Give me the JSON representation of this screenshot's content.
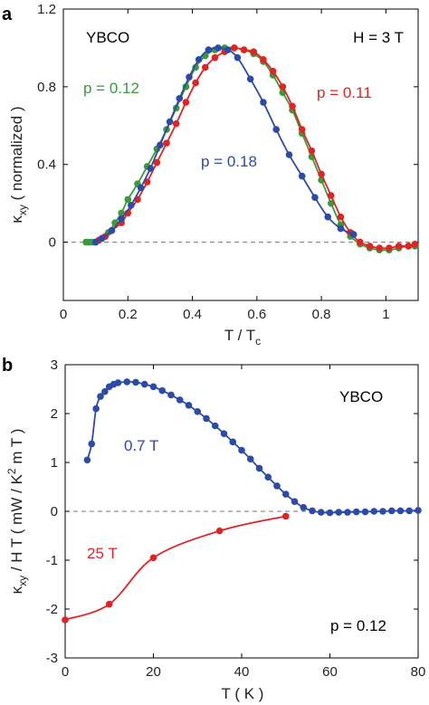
{
  "chart_data": [
    {
      "type": "scatter",
      "panel": "a",
      "xlabel_main": "T / T",
      "xlabel_sub": "c",
      "ylabel_main": "κ",
      "ylabel_sub": "xy",
      "ylabel_rest": " ( normalized )",
      "xlim": [
        0,
        1.1
      ],
      "ylim": [
        -0.3,
        1.2
      ],
      "xticks": [
        0,
        0.2,
        0.4,
        0.6,
        0.8,
        1
      ],
      "xtick_labels": [
        "0",
        "0.2",
        "0.4",
        "0.6",
        "0.8",
        "1"
      ],
      "yticks": [
        0,
        0.4,
        0.8,
        1.2
      ],
      "ytick_labels": [
        "0",
        "0.4",
        "0.8",
        "1.2"
      ],
      "zero_line": true,
      "annotations": {
        "material": "YBCO",
        "field": "H = 3 T"
      },
      "series": [
        {
          "name": "p = 0.12",
          "color": "#3a9a3a",
          "x": [
            0.07,
            0.08,
            0.09,
            0.1,
            0.11,
            0.12,
            0.14,
            0.16,
            0.18,
            0.2,
            0.23,
            0.26,
            0.29,
            0.32,
            0.35,
            0.38,
            0.41,
            0.44,
            0.47,
            0.5,
            0.53,
            0.56,
            0.59,
            0.62,
            0.65,
            0.68,
            0.71,
            0.74,
            0.77,
            0.8,
            0.83,
            0.86,
            0.89,
            0.92,
            0.95,
            0.98,
            1.01,
            1.04,
            1.07,
            1.09
          ],
          "y": [
            0.0,
            0.0,
            0.0,
            0.0,
            0.01,
            0.02,
            0.05,
            0.1,
            0.15,
            0.22,
            0.3,
            0.39,
            0.48,
            0.58,
            0.69,
            0.8,
            0.9,
            0.96,
            0.99,
            1.0,
            1.0,
            0.99,
            0.97,
            0.93,
            0.86,
            0.77,
            0.68,
            0.56,
            0.44,
            0.32,
            0.2,
            0.09,
            0.03,
            -0.01,
            -0.03,
            -0.04,
            -0.04,
            -0.03,
            -0.02,
            -0.02
          ]
        },
        {
          "name": "p = 0.11",
          "color": "#e02424",
          "x": [
            0.11,
            0.13,
            0.15,
            0.18,
            0.2,
            0.23,
            0.26,
            0.29,
            0.32,
            0.35,
            0.38,
            0.41,
            0.44,
            0.47,
            0.5,
            0.53,
            0.56,
            0.59,
            0.62,
            0.65,
            0.68,
            0.71,
            0.74,
            0.77,
            0.8,
            0.83,
            0.86,
            0.89,
            0.92,
            0.95,
            0.98,
            1.01,
            1.04,
            1.07,
            1.09
          ],
          "y": [
            0.01,
            0.03,
            0.06,
            0.1,
            0.15,
            0.22,
            0.31,
            0.41,
            0.51,
            0.61,
            0.72,
            0.82,
            0.9,
            0.95,
            0.98,
            1.0,
            0.99,
            0.98,
            0.94,
            0.88,
            0.8,
            0.7,
            0.58,
            0.47,
            0.35,
            0.24,
            0.13,
            0.05,
            0.0,
            -0.02,
            -0.03,
            -0.03,
            -0.02,
            -0.02,
            -0.01
          ]
        },
        {
          "name": "p = 0.18",
          "color": "#2c4aa8",
          "x": [
            0.1,
            0.12,
            0.15,
            0.18,
            0.21,
            0.24,
            0.27,
            0.3,
            0.33,
            0.36,
            0.39,
            0.42,
            0.45,
            0.48,
            0.51,
            0.54,
            0.58,
            0.62,
            0.66,
            0.7,
            0.74,
            0.78,
            0.82,
            0.86,
            0.9
          ],
          "y": [
            0.0,
            0.02,
            0.06,
            0.12,
            0.19,
            0.28,
            0.38,
            0.5,
            0.62,
            0.74,
            0.85,
            0.94,
            0.99,
            1.0,
            0.99,
            0.95,
            0.84,
            0.72,
            0.58,
            0.45,
            0.34,
            0.23,
            0.13,
            0.07,
            0.04
          ]
        }
      ]
    },
    {
      "type": "scatter",
      "panel": "b",
      "xlabel": "T ( K )",
      "ylabel_main": "κ",
      "ylabel_sub": "xy",
      "ylabel_rest": " / H T  ( mW / K",
      "ylabel_sup": "2",
      "ylabel_end": "  m T )",
      "xlim": [
        0,
        80
      ],
      "ylim": [
        -3,
        3
      ],
      "xticks": [
        0,
        20,
        40,
        60,
        80
      ],
      "xtick_labels": [
        "0",
        "20",
        "40",
        "60",
        "80"
      ],
      "yticks": [
        -3,
        -2,
        -1,
        0,
        1,
        2,
        3
      ],
      "ytick_labels": [
        "-3",
        "-2",
        "-1",
        "0",
        "1",
        "2",
        "3"
      ],
      "zero_line": true,
      "annotations": {
        "material": "YBCO",
        "doping": "p = 0.12"
      },
      "series": [
        {
          "name": "0.7 T",
          "color": "#2c4aa8",
          "x": [
            5,
            6,
            7,
            8,
            9,
            10,
            11,
            12,
            14,
            16,
            18,
            20,
            22,
            24,
            26,
            28,
            30,
            32,
            34,
            36,
            38,
            40,
            42,
            44,
            46,
            48,
            50,
            52,
            54,
            56,
            58,
            60,
            62,
            64,
            66,
            68,
            70,
            72,
            74,
            76,
            78,
            80
          ],
          "y": [
            1.05,
            1.38,
            2.1,
            2.35,
            2.45,
            2.55,
            2.6,
            2.63,
            2.65,
            2.64,
            2.6,
            2.55,
            2.47,
            2.38,
            2.28,
            2.17,
            2.04,
            1.9,
            1.75,
            1.59,
            1.42,
            1.25,
            1.07,
            0.88,
            0.7,
            0.52,
            0.35,
            0.2,
            0.08,
            0.01,
            -0.02,
            -0.03,
            -0.02,
            -0.02,
            -0.01,
            -0.01,
            0.0,
            0.0,
            0.01,
            0.01,
            0.01,
            0.02
          ]
        },
        {
          "name": "25 T",
          "color": "#e02424",
          "x": [
            0,
            10,
            20,
            35,
            50
          ],
          "y": [
            -2.22,
            -1.9,
            -0.95,
            -0.4,
            -0.1
          ]
        }
      ]
    }
  ]
}
